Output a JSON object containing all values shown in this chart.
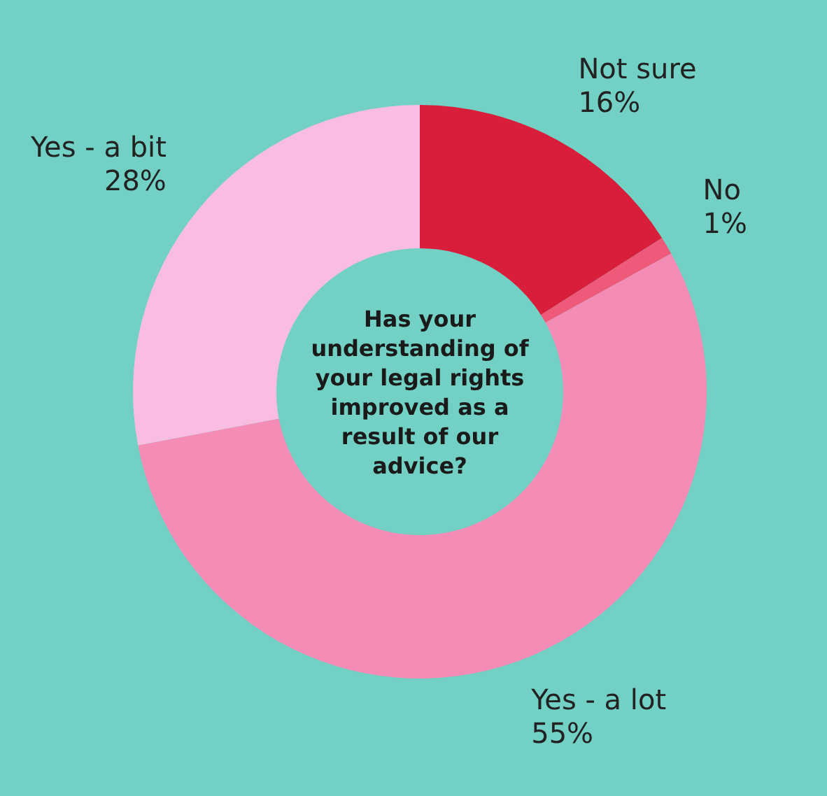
{
  "chart_data": {
    "type": "donut",
    "title": "Has your understanding of your legal rights improved as a result of our advice?",
    "categories": [
      "Not sure",
      "No",
      "Yes - a lot",
      "Yes - a bit"
    ],
    "values": [
      16,
      1,
      55,
      28
    ],
    "value_labels": [
      "16%",
      "1%",
      "55%",
      "28%"
    ],
    "colors": [
      "#d91e3c",
      "#f05a7a",
      "#f48cb6",
      "#f8bde0"
    ]
  }
}
